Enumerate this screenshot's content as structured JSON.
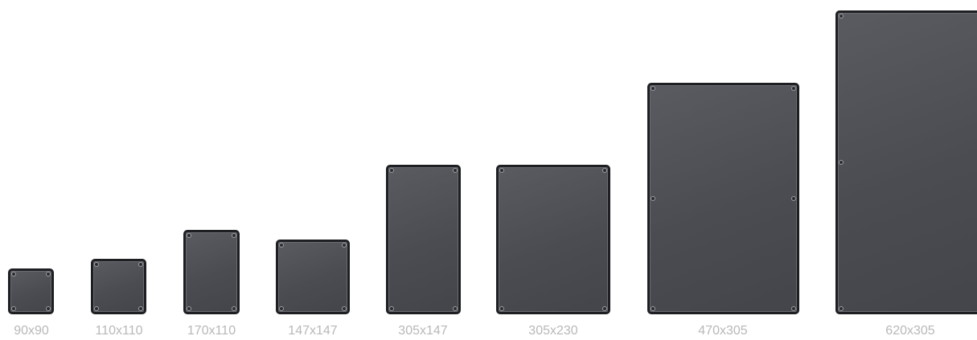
{
  "enclosures": [
    {
      "label": "90x90"
    },
    {
      "label": "110x110"
    },
    {
      "label": "170x110"
    },
    {
      "label": "147x147"
    },
    {
      "label": "305x147"
    },
    {
      "label": "305x230"
    },
    {
      "label": "470x305"
    },
    {
      "label": "620x305"
    }
  ],
  "colors": {
    "body": "#4d4f55",
    "edge": "#1e1f22",
    "label": "#b7b8bb",
    "background": "#ffffff"
  }
}
